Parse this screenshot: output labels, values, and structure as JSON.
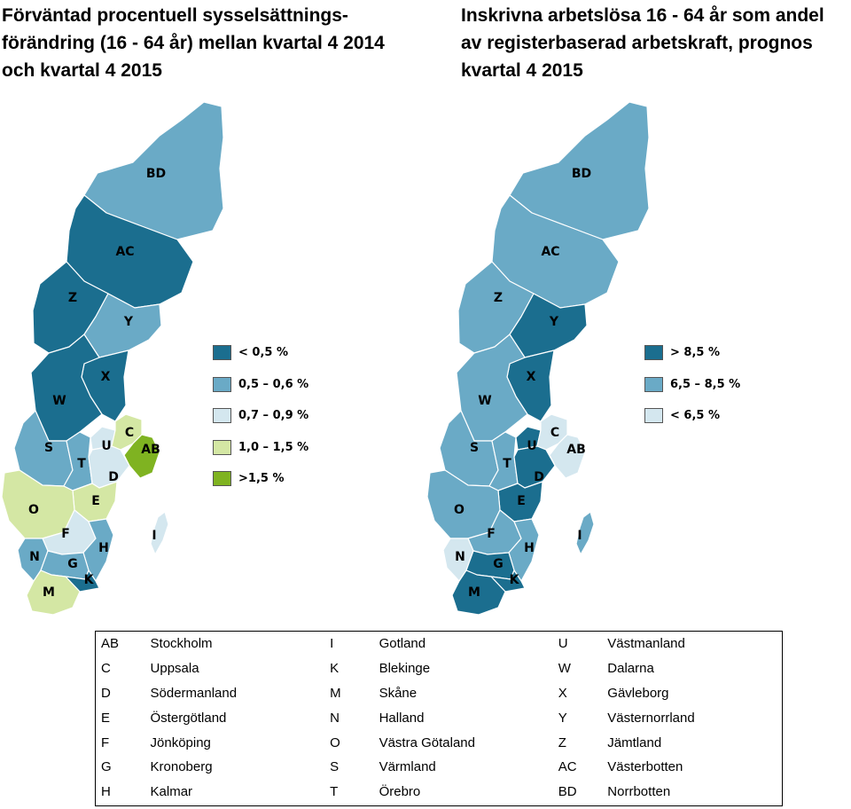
{
  "titles": {
    "left": "Förväntad procentuell sysselsättnings-förändring (16 - 64 år) mellan kvartal 4 2014 och kvartal 4 2015",
    "right": "Inskrivna arbetslösa 16 - 64 år som andel av registerbaserad arbetskraft, prognos kvartal 4 2015"
  },
  "colors": {
    "dark": "#1b6e8f",
    "medium": "#6aaac6",
    "light": "#d4e7ef",
    "yellow_green": "#d4e7a4",
    "green": "#7fb321"
  },
  "maps": {
    "left": {
      "legend": [
        {
          "label": "< 0,5 %",
          "color_key": "dark"
        },
        {
          "label": "0,5 – 0,6 %",
          "color_key": "medium"
        },
        {
          "label": "0,7 – 0,9 %",
          "color_key": "light"
        },
        {
          "label": "1,0 – 1,5 %",
          "color_key": "yellow_green"
        },
        {
          "label": ">1,5 %",
          "color_key": "green"
        }
      ],
      "regions": {
        "BD": "medium",
        "AC": "dark",
        "Z": "dark",
        "Y": "medium",
        "X": "dark",
        "W": "dark",
        "S": "medium",
        "T": "medium",
        "U": "light",
        "C": "yellow_green",
        "AB": "green",
        "D": "light",
        "E": "yellow_green",
        "O": "yellow_green",
        "F": "light",
        "H": "medium",
        "N": "medium",
        "G": "medium",
        "K": "dark",
        "M": "yellow_green",
        "I": "light"
      }
    },
    "right": {
      "legend": [
        {
          "label": "> 8,5 %",
          "color_key": "dark"
        },
        {
          "label": "6,5 – 8,5 %",
          "color_key": "medium"
        },
        {
          "label": "< 6,5 %",
          "color_key": "light"
        }
      ],
      "regions": {
        "BD": "medium",
        "AC": "medium",
        "Z": "medium",
        "Y": "dark",
        "X": "dark",
        "W": "medium",
        "S": "medium",
        "T": "medium",
        "U": "dark",
        "C": "light",
        "AB": "light",
        "D": "dark",
        "E": "dark",
        "O": "medium",
        "F": "medium",
        "H": "medium",
        "N": "light",
        "G": "dark",
        "K": "dark",
        "M": "dark",
        "I": "medium"
      }
    }
  },
  "region_table": {
    "rows": [
      [
        [
          "AB",
          "Stockholm"
        ],
        [
          "I",
          "Gotland"
        ],
        [
          "U",
          "Västmanland"
        ]
      ],
      [
        [
          "C",
          "Uppsala"
        ],
        [
          "K",
          "Blekinge"
        ],
        [
          "W",
          "Dalarna"
        ]
      ],
      [
        [
          "D",
          "Södermanland"
        ],
        [
          "M",
          "Skåne"
        ],
        [
          "X",
          "Gävleborg"
        ]
      ],
      [
        [
          "E",
          "Östergötland"
        ],
        [
          "N",
          "Halland"
        ],
        [
          "Y",
          "Västernorrland"
        ]
      ],
      [
        [
          "F",
          "Jönköping"
        ],
        [
          "O",
          "Västra Götaland"
        ],
        [
          "Z",
          "Jämtland"
        ]
      ],
      [
        [
          "G",
          "Kronoberg"
        ],
        [
          "S",
          "Värmland"
        ],
        [
          "AC",
          "Västerbotten"
        ]
      ],
      [
        [
          "H",
          "Kalmar"
        ],
        [
          "T",
          "Örebro"
        ],
        [
          "BD",
          "Norrbotten"
        ]
      ]
    ]
  }
}
